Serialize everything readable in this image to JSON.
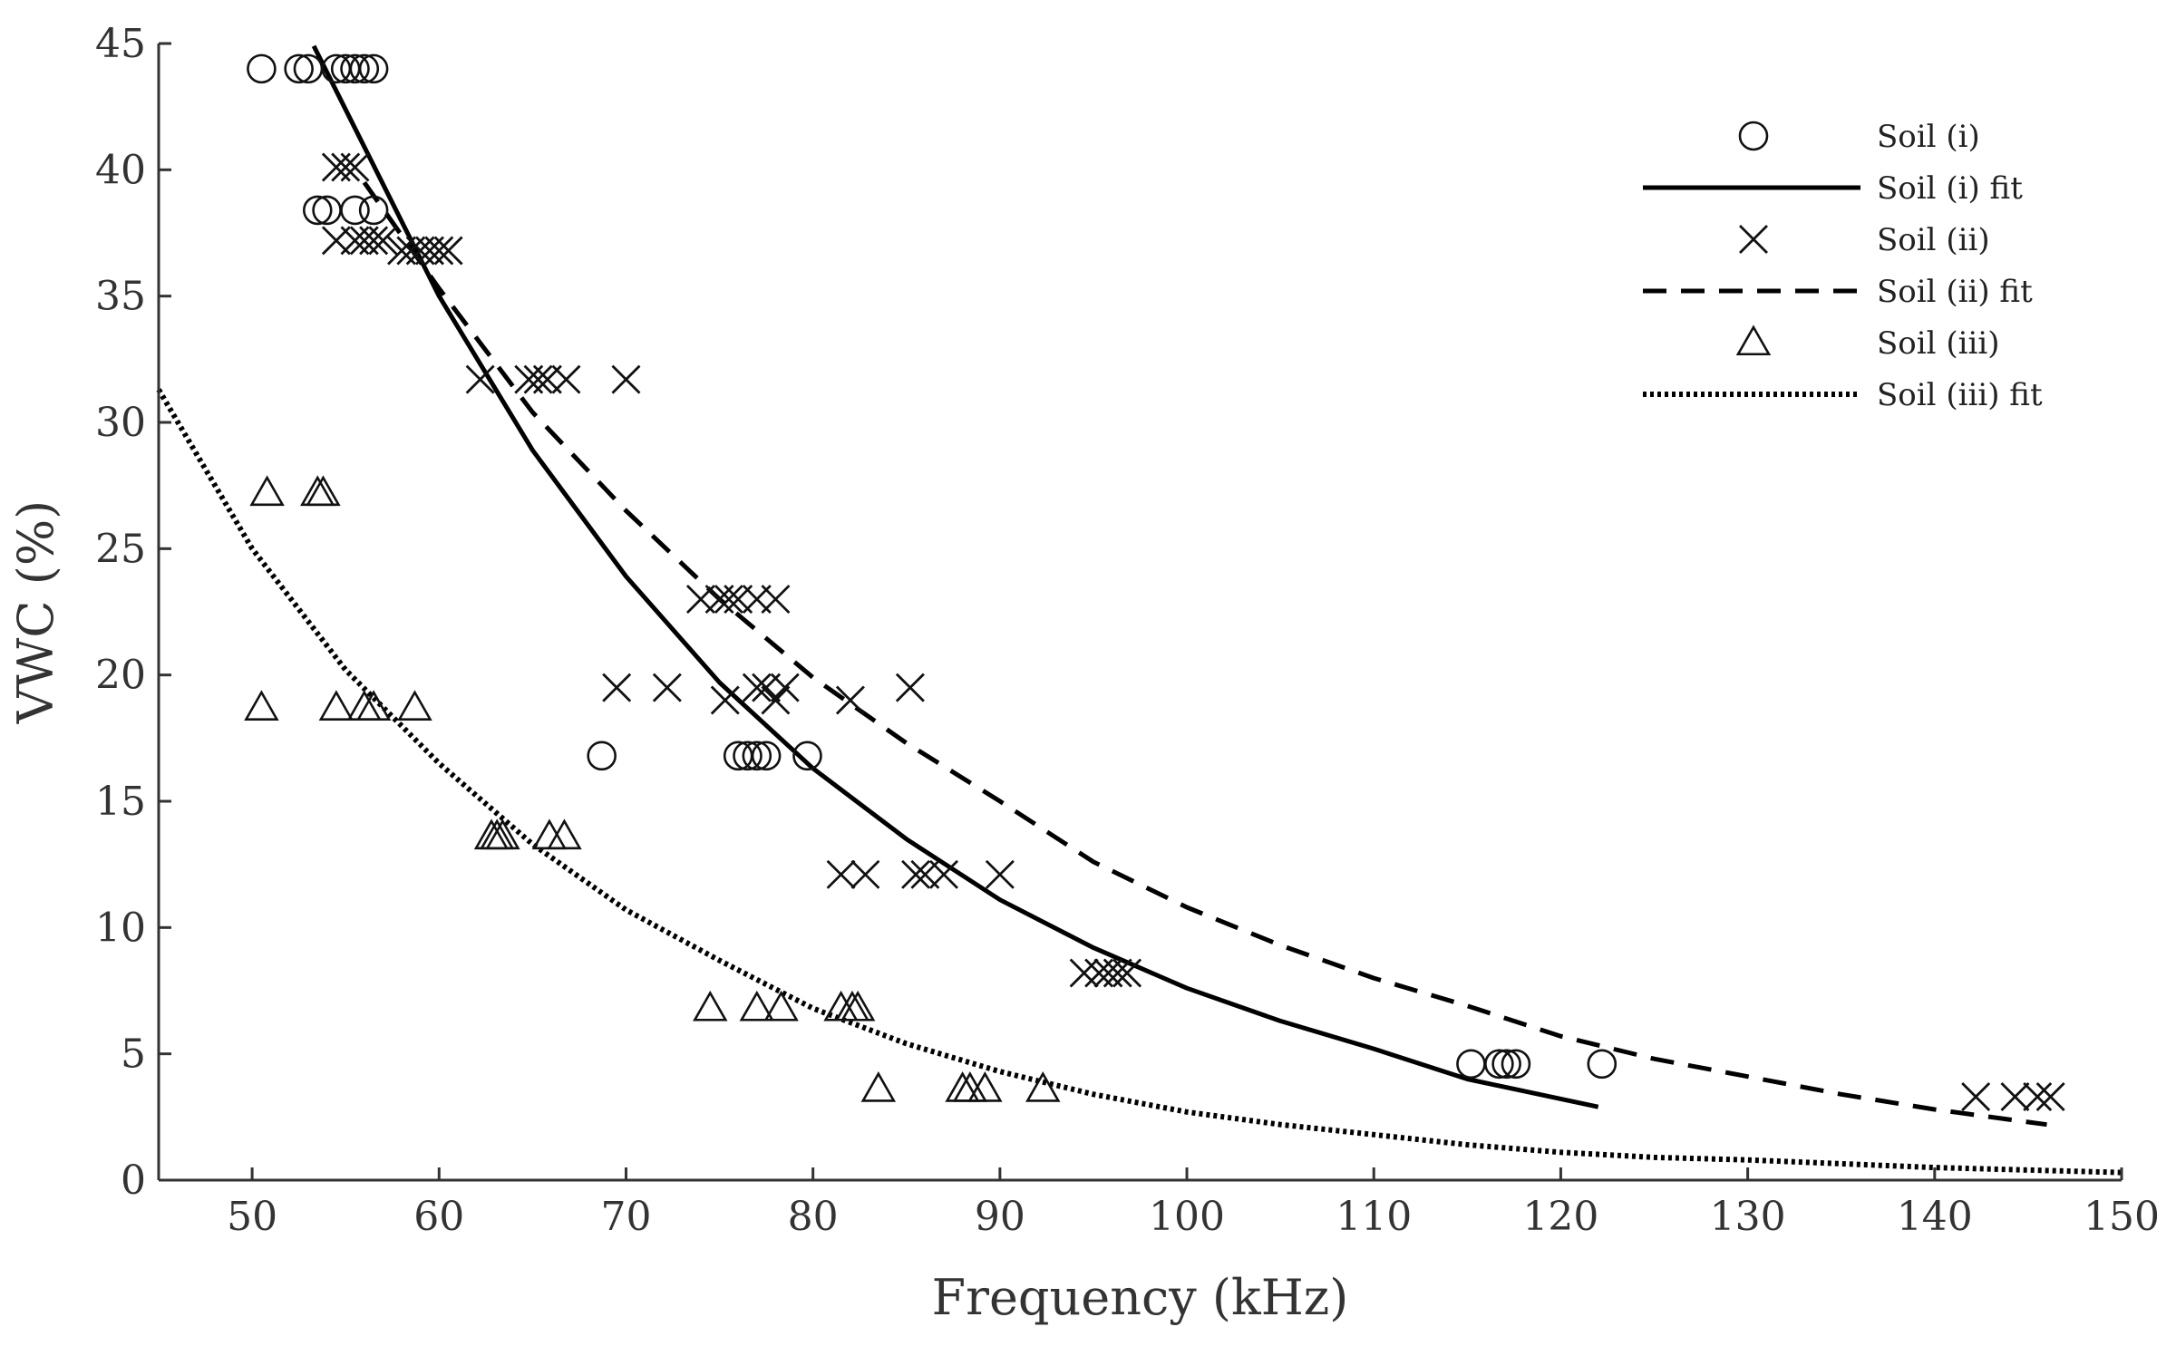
{
  "chart_data": {
    "type": "scatter",
    "title": "",
    "xlabel": "Frequency (kHz)",
    "ylabel": "VWC (%)",
    "xlim": [
      45,
      150
    ],
    "ylim": [
      0,
      45
    ],
    "xticks": [
      50,
      60,
      70,
      80,
      90,
      100,
      110,
      120,
      130,
      140,
      150
    ],
    "yticks": [
      0,
      5,
      10,
      15,
      20,
      25,
      30,
      35,
      40,
      45
    ],
    "grid": false,
    "legend_position": "top-right",
    "legend": [
      {
        "label": "Soil (i)",
        "kind": "marker",
        "marker": "circle"
      },
      {
        "label": "Soil (i) fit",
        "kind": "line",
        "style": "solid"
      },
      {
        "label": "Soil (ii)",
        "kind": "marker",
        "marker": "x"
      },
      {
        "label": "Soil (ii) fit",
        "kind": "line",
        "style": "dashed"
      },
      {
        "label": "Soil (iii)",
        "kind": "marker",
        "marker": "triangle"
      },
      {
        "label": "Soil (iii) fit",
        "kind": "line",
        "style": "dotted"
      }
    ],
    "series": [
      {
        "name": "Soil (i)",
        "marker": "circle",
        "points": [
          [
            50.5,
            44
          ],
          [
            52.5,
            44
          ],
          [
            53,
            44
          ],
          [
            54.5,
            44
          ],
          [
            55,
            44
          ],
          [
            55.5,
            44
          ],
          [
            56,
            44
          ],
          [
            56.5,
            44
          ],
          [
            53.5,
            38.4
          ],
          [
            54,
            38.4
          ],
          [
            55.5,
            38.4
          ],
          [
            56.5,
            38.4
          ],
          [
            68.7,
            16.8
          ],
          [
            76,
            16.8
          ],
          [
            76.5,
            16.8
          ],
          [
            77,
            16.8
          ],
          [
            77.5,
            16.8
          ],
          [
            79.7,
            16.8
          ],
          [
            115.2,
            4.6
          ],
          [
            116.7,
            4.6
          ],
          [
            117.1,
            4.6
          ],
          [
            117.6,
            4.6
          ],
          [
            122.2,
            4.6
          ]
        ]
      },
      {
        "name": "Soil (ii)",
        "marker": "x",
        "points": [
          [
            54.5,
            40.1
          ],
          [
            55,
            40.1
          ],
          [
            55.5,
            40.1
          ],
          [
            54.5,
            37.2
          ],
          [
            55.5,
            37.2
          ],
          [
            56,
            37.2
          ],
          [
            56.5,
            37.2
          ],
          [
            57,
            37.2
          ],
          [
            58,
            36.8
          ],
          [
            58.5,
            36.8
          ],
          [
            59,
            36.8
          ],
          [
            59.5,
            36.8
          ],
          [
            60,
            36.8
          ],
          [
            60.5,
            36.8
          ],
          [
            62.2,
            31.7
          ],
          [
            64.8,
            31.7
          ],
          [
            65.3,
            31.7
          ],
          [
            65.8,
            31.7
          ],
          [
            66.8,
            31.7
          ],
          [
            70,
            31.7
          ],
          [
            74,
            23
          ],
          [
            75,
            23
          ],
          [
            75.5,
            23
          ],
          [
            76,
            23
          ],
          [
            77,
            23
          ],
          [
            78,
            23
          ],
          [
            69.5,
            19.5
          ],
          [
            72.2,
            19.5
          ],
          [
            77,
            19.5
          ],
          [
            77.5,
            19.5
          ],
          [
            78.5,
            19.5
          ],
          [
            85.2,
            19.5
          ],
          [
            75.3,
            19
          ],
          [
            78,
            19
          ],
          [
            82,
            19
          ],
          [
            81.5,
            12.1
          ],
          [
            82.8,
            12.1
          ],
          [
            85.5,
            12.1
          ],
          [
            86,
            12.1
          ],
          [
            87,
            12.1
          ],
          [
            90,
            12.1
          ],
          [
            94.5,
            8.2
          ],
          [
            95.3,
            8.2
          ],
          [
            95.8,
            8.2
          ],
          [
            96.3,
            8.2
          ],
          [
            96.8,
            8.2
          ],
          [
            142.2,
            3.3
          ],
          [
            144.3,
            3.3
          ],
          [
            145.5,
            3.3
          ],
          [
            146.2,
            3.3
          ]
        ]
      },
      {
        "name": "Soil (iii)",
        "marker": "triangle",
        "points": [
          [
            50.8,
            27.2
          ],
          [
            53.5,
            27.2
          ],
          [
            53.8,
            27.2
          ],
          [
            50.5,
            18.7
          ],
          [
            54.5,
            18.7
          ],
          [
            56,
            18.7
          ],
          [
            56.5,
            18.7
          ],
          [
            58.7,
            18.7
          ],
          [
            62.8,
            13.6
          ],
          [
            63.1,
            13.6
          ],
          [
            63.4,
            13.6
          ],
          [
            65.9,
            13.6
          ],
          [
            66.7,
            13.6
          ],
          [
            74.5,
            6.8
          ],
          [
            77,
            6.8
          ],
          [
            78.3,
            6.8
          ],
          [
            81.5,
            6.8
          ],
          [
            82.1,
            6.8
          ],
          [
            82.4,
            6.8
          ],
          [
            83.5,
            3.6
          ],
          [
            88,
            3.6
          ],
          [
            88.4,
            3.6
          ],
          [
            89.2,
            3.6
          ],
          [
            92.3,
            3.6
          ]
        ]
      }
    ],
    "fits": [
      {
        "name": "Soil (i) fit",
        "style": "solid",
        "x_range": [
          53.3,
          122
        ],
        "points": [
          [
            53.3,
            44.9
          ],
          [
            60,
            35
          ],
          [
            65,
            28.9
          ],
          [
            70,
            23.9
          ],
          [
            75,
            19.7
          ],
          [
            80,
            16.3
          ],
          [
            85,
            13.5
          ],
          [
            90,
            11.1
          ],
          [
            95,
            9.2
          ],
          [
            100,
            7.6
          ],
          [
            105,
            6.3
          ],
          [
            110,
            5.2
          ],
          [
            115,
            4.0
          ],
          [
            122,
            2.9
          ]
        ]
      },
      {
        "name": "Soil (ii) fit",
        "style": "dashed",
        "x_range": [
          56,
          146
        ],
        "points": [
          [
            56,
            39.5
          ],
          [
            60,
            35.3
          ],
          [
            65,
            30.4
          ],
          [
            70,
            26.5
          ],
          [
            75,
            23
          ],
          [
            80,
            19.9
          ],
          [
            85,
            17.3
          ],
          [
            90,
            15
          ],
          [
            95,
            12.6
          ],
          [
            100,
            10.8
          ],
          [
            105,
            9.3
          ],
          [
            110,
            8
          ],
          [
            115,
            6.9
          ],
          [
            120,
            5.7
          ],
          [
            125,
            4.8
          ],
          [
            130,
            4.1
          ],
          [
            135,
            3.4
          ],
          [
            140,
            2.8
          ],
          [
            146,
            2.2
          ]
        ]
      },
      {
        "name": "Soil (iii) fit",
        "style": "dotted",
        "x_range": [
          45,
          150
        ],
        "points": [
          [
            45,
            31.3
          ],
          [
            50,
            25
          ],
          [
            55,
            20.2
          ],
          [
            60,
            16.5
          ],
          [
            65,
            13.3
          ],
          [
            70,
            10.7
          ],
          [
            75,
            8.7
          ],
          [
            80,
            6.8
          ],
          [
            85,
            5.4
          ],
          [
            90,
            4.3
          ],
          [
            95,
            3.4
          ],
          [
            100,
            2.7
          ],
          [
            105,
            2.2
          ],
          [
            110,
            1.8
          ],
          [
            115,
            1.4
          ],
          [
            120,
            1.1
          ],
          [
            125,
            0.9
          ],
          [
            130,
            0.8
          ],
          [
            140,
            0.5
          ],
          [
            150,
            0.3
          ]
        ]
      }
    ]
  }
}
